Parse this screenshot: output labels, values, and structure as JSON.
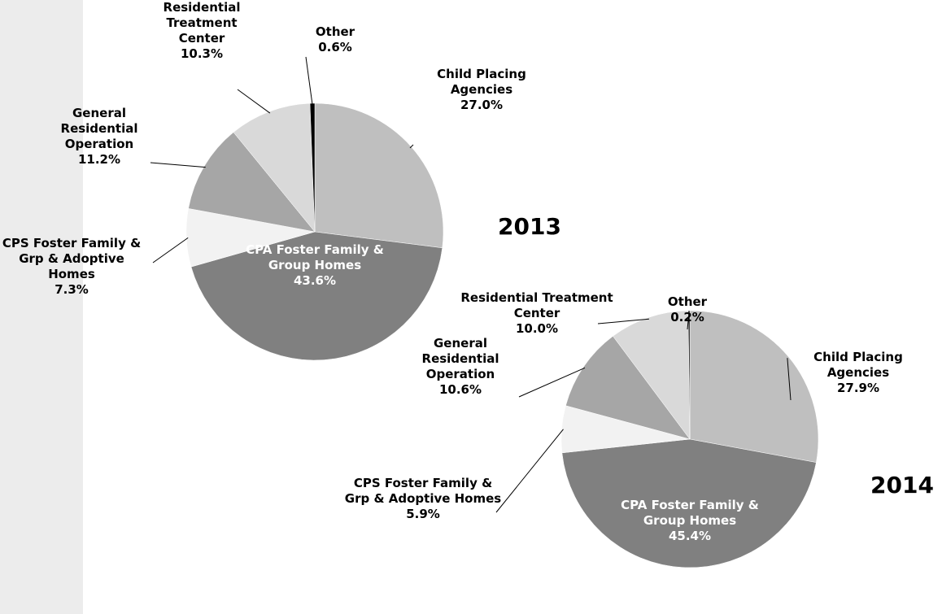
{
  "chart_data": [
    {
      "type": "pie",
      "title": "2013",
      "categories": [
        "Child Placing Agencies",
        "CPA Foster Family & Group Homes",
        "CPS Foster Family & Grp & Adoptive Homes",
        "General Residential Operation",
        "Residential Treatment Center",
        "Other"
      ],
      "values": [
        27.0,
        43.6,
        7.3,
        11.2,
        10.3,
        0.6
      ],
      "value_labels": [
        "27.0%",
        "43.6%",
        "7.3%",
        "11.2%",
        "10.3%",
        "0.6%"
      ],
      "colors": [
        "#bfbfbf",
        "#808080",
        "#f2f2f2",
        "#a6a6a6",
        "#d9d9d9",
        "#000000"
      ]
    },
    {
      "type": "pie",
      "title": "2014",
      "categories": [
        "Child Placing Agencies",
        "CPA Foster Family & Group Homes",
        "CPS Foster Family & Grp & Adoptive Homes",
        "General Residential Operation",
        "Residential Treatment Center",
        "Other"
      ],
      "values": [
        27.9,
        45.4,
        5.9,
        10.6,
        10.0,
        0.2
      ],
      "value_labels": [
        "27.9%",
        "45.4%",
        "5.9%",
        "10.6%",
        "10.0%",
        "0.2%"
      ],
      "colors": [
        "#bfbfbf",
        "#808080",
        "#f2f2f2",
        "#a6a6a6",
        "#d9d9d9",
        "#000000"
      ]
    }
  ]
}
